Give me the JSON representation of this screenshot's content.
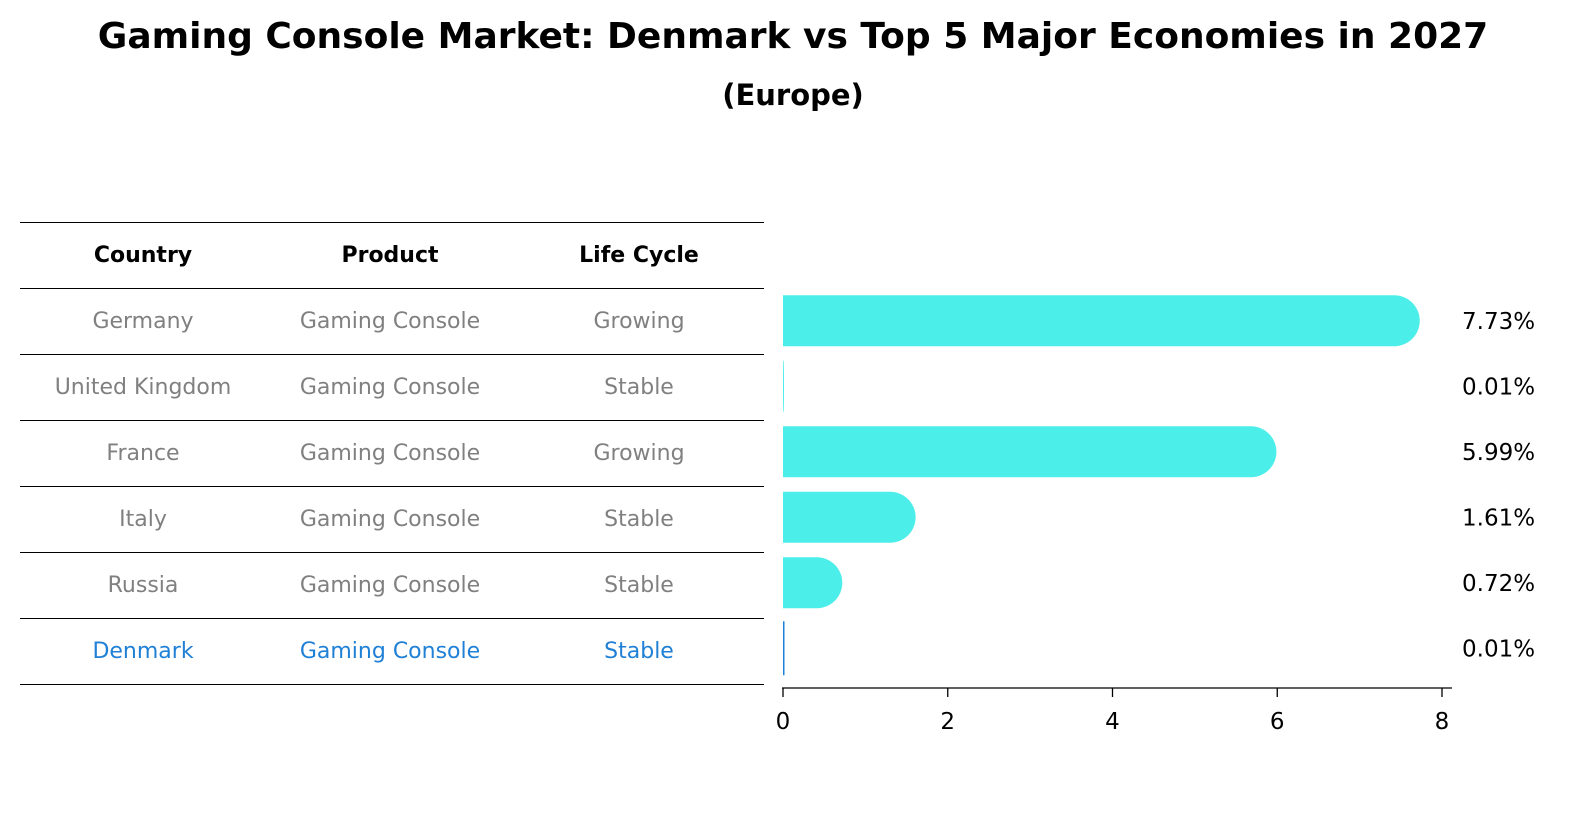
{
  "title": "Gaming Console Market: Denmark vs Top 5 Major Economies in 2027",
  "subtitle": "(Europe)",
  "table": {
    "headers": [
      "Country",
      "Product",
      "Life Cycle"
    ],
    "rows": [
      {
        "country": "Germany",
        "product": "Gaming Console",
        "life_cycle": "Growing"
      },
      {
        "country": "United Kingdom",
        "product": "Gaming Console",
        "life_cycle": "Stable"
      },
      {
        "country": "France",
        "product": "Gaming Console",
        "life_cycle": "Growing"
      },
      {
        "country": "Italy",
        "product": "Gaming Console",
        "life_cycle": "Stable"
      },
      {
        "country": "Russia",
        "product": "Gaming Console",
        "life_cycle": "Stable"
      },
      {
        "country": "Denmark",
        "product": "Gaming Console",
        "life_cycle": "Stable",
        "highlight": true
      }
    ]
  },
  "colors": {
    "bar": "#4ceeea",
    "highlight_text": "#1f80d6",
    "muted_text": "#808080",
    "highlight_bar_outline": "#1f80d6"
  },
  "chart_data": {
    "type": "bar",
    "orientation": "horizontal",
    "categories": [
      "Germany",
      "United Kingdom",
      "France",
      "Italy",
      "Russia",
      "Denmark"
    ],
    "values": [
      7.73,
      0.01,
      5.99,
      1.61,
      0.72,
      0.01
    ],
    "value_labels": [
      "7.73%",
      "0.01%",
      "5.99%",
      "1.61%",
      "0.72%",
      "0.01%"
    ],
    "xlim": [
      0,
      8
    ],
    "xticks": [
      0,
      2,
      4,
      6,
      8
    ],
    "highlight_category": "Denmark"
  }
}
